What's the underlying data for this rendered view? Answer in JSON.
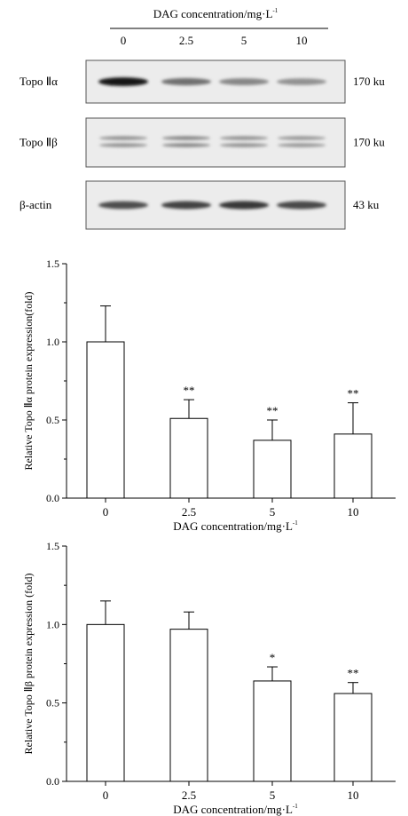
{
  "blot": {
    "header": "DAG concentration/mg·L",
    "header_sup": "-1",
    "lanes": [
      "0",
      "2.5",
      "5",
      "10"
    ],
    "rows": [
      {
        "label": "Topo Ⅱα",
        "size": "170 ku",
        "intensities": [
          0.95,
          0.55,
          0.45,
          0.4
        ],
        "double": false
      },
      {
        "label": "Topo Ⅱβ",
        "size": "170 ku",
        "intensities": [
          0.4,
          0.45,
          0.4,
          0.38
        ],
        "double": true
      },
      {
        "label": "β-actin",
        "size": "43 ku",
        "intensities": [
          0.7,
          0.75,
          0.8,
          0.72
        ],
        "double": false
      }
    ]
  },
  "chart_data": [
    {
      "type": "bar",
      "categories": [
        "0",
        "2.5",
        "5",
        "10"
      ],
      "values": [
        1.0,
        0.51,
        0.37,
        0.41
      ],
      "errors": [
        0.23,
        0.12,
        0.13,
        0.2
      ],
      "annotations": [
        "",
        "**",
        "**",
        "**"
      ],
      "ylabel": "Relative Topo Ⅱα protein expression(fold)",
      "xlabel": "DAG concentration/mg·L",
      "xlabel_sup": "-1",
      "ylim": [
        0,
        1.5
      ],
      "yticks": [
        "0.0",
        "0.5",
        "1.0",
        "1.5"
      ]
    },
    {
      "type": "bar",
      "categories": [
        "0",
        "2.5",
        "5",
        "10"
      ],
      "values": [
        1.0,
        0.97,
        0.64,
        0.56
      ],
      "errors": [
        0.15,
        0.11,
        0.09,
        0.07
      ],
      "annotations": [
        "",
        "",
        "*",
        "**"
      ],
      "ylabel": "Relative Topo Ⅱβ protein expression (fold)",
      "xlabel": "DAG concentration/mg·L",
      "xlabel_sup": "-1",
      "ylim": [
        0,
        1.5
      ],
      "yticks": [
        "0.0",
        "0.5",
        "1.0",
        "1.5"
      ]
    }
  ]
}
